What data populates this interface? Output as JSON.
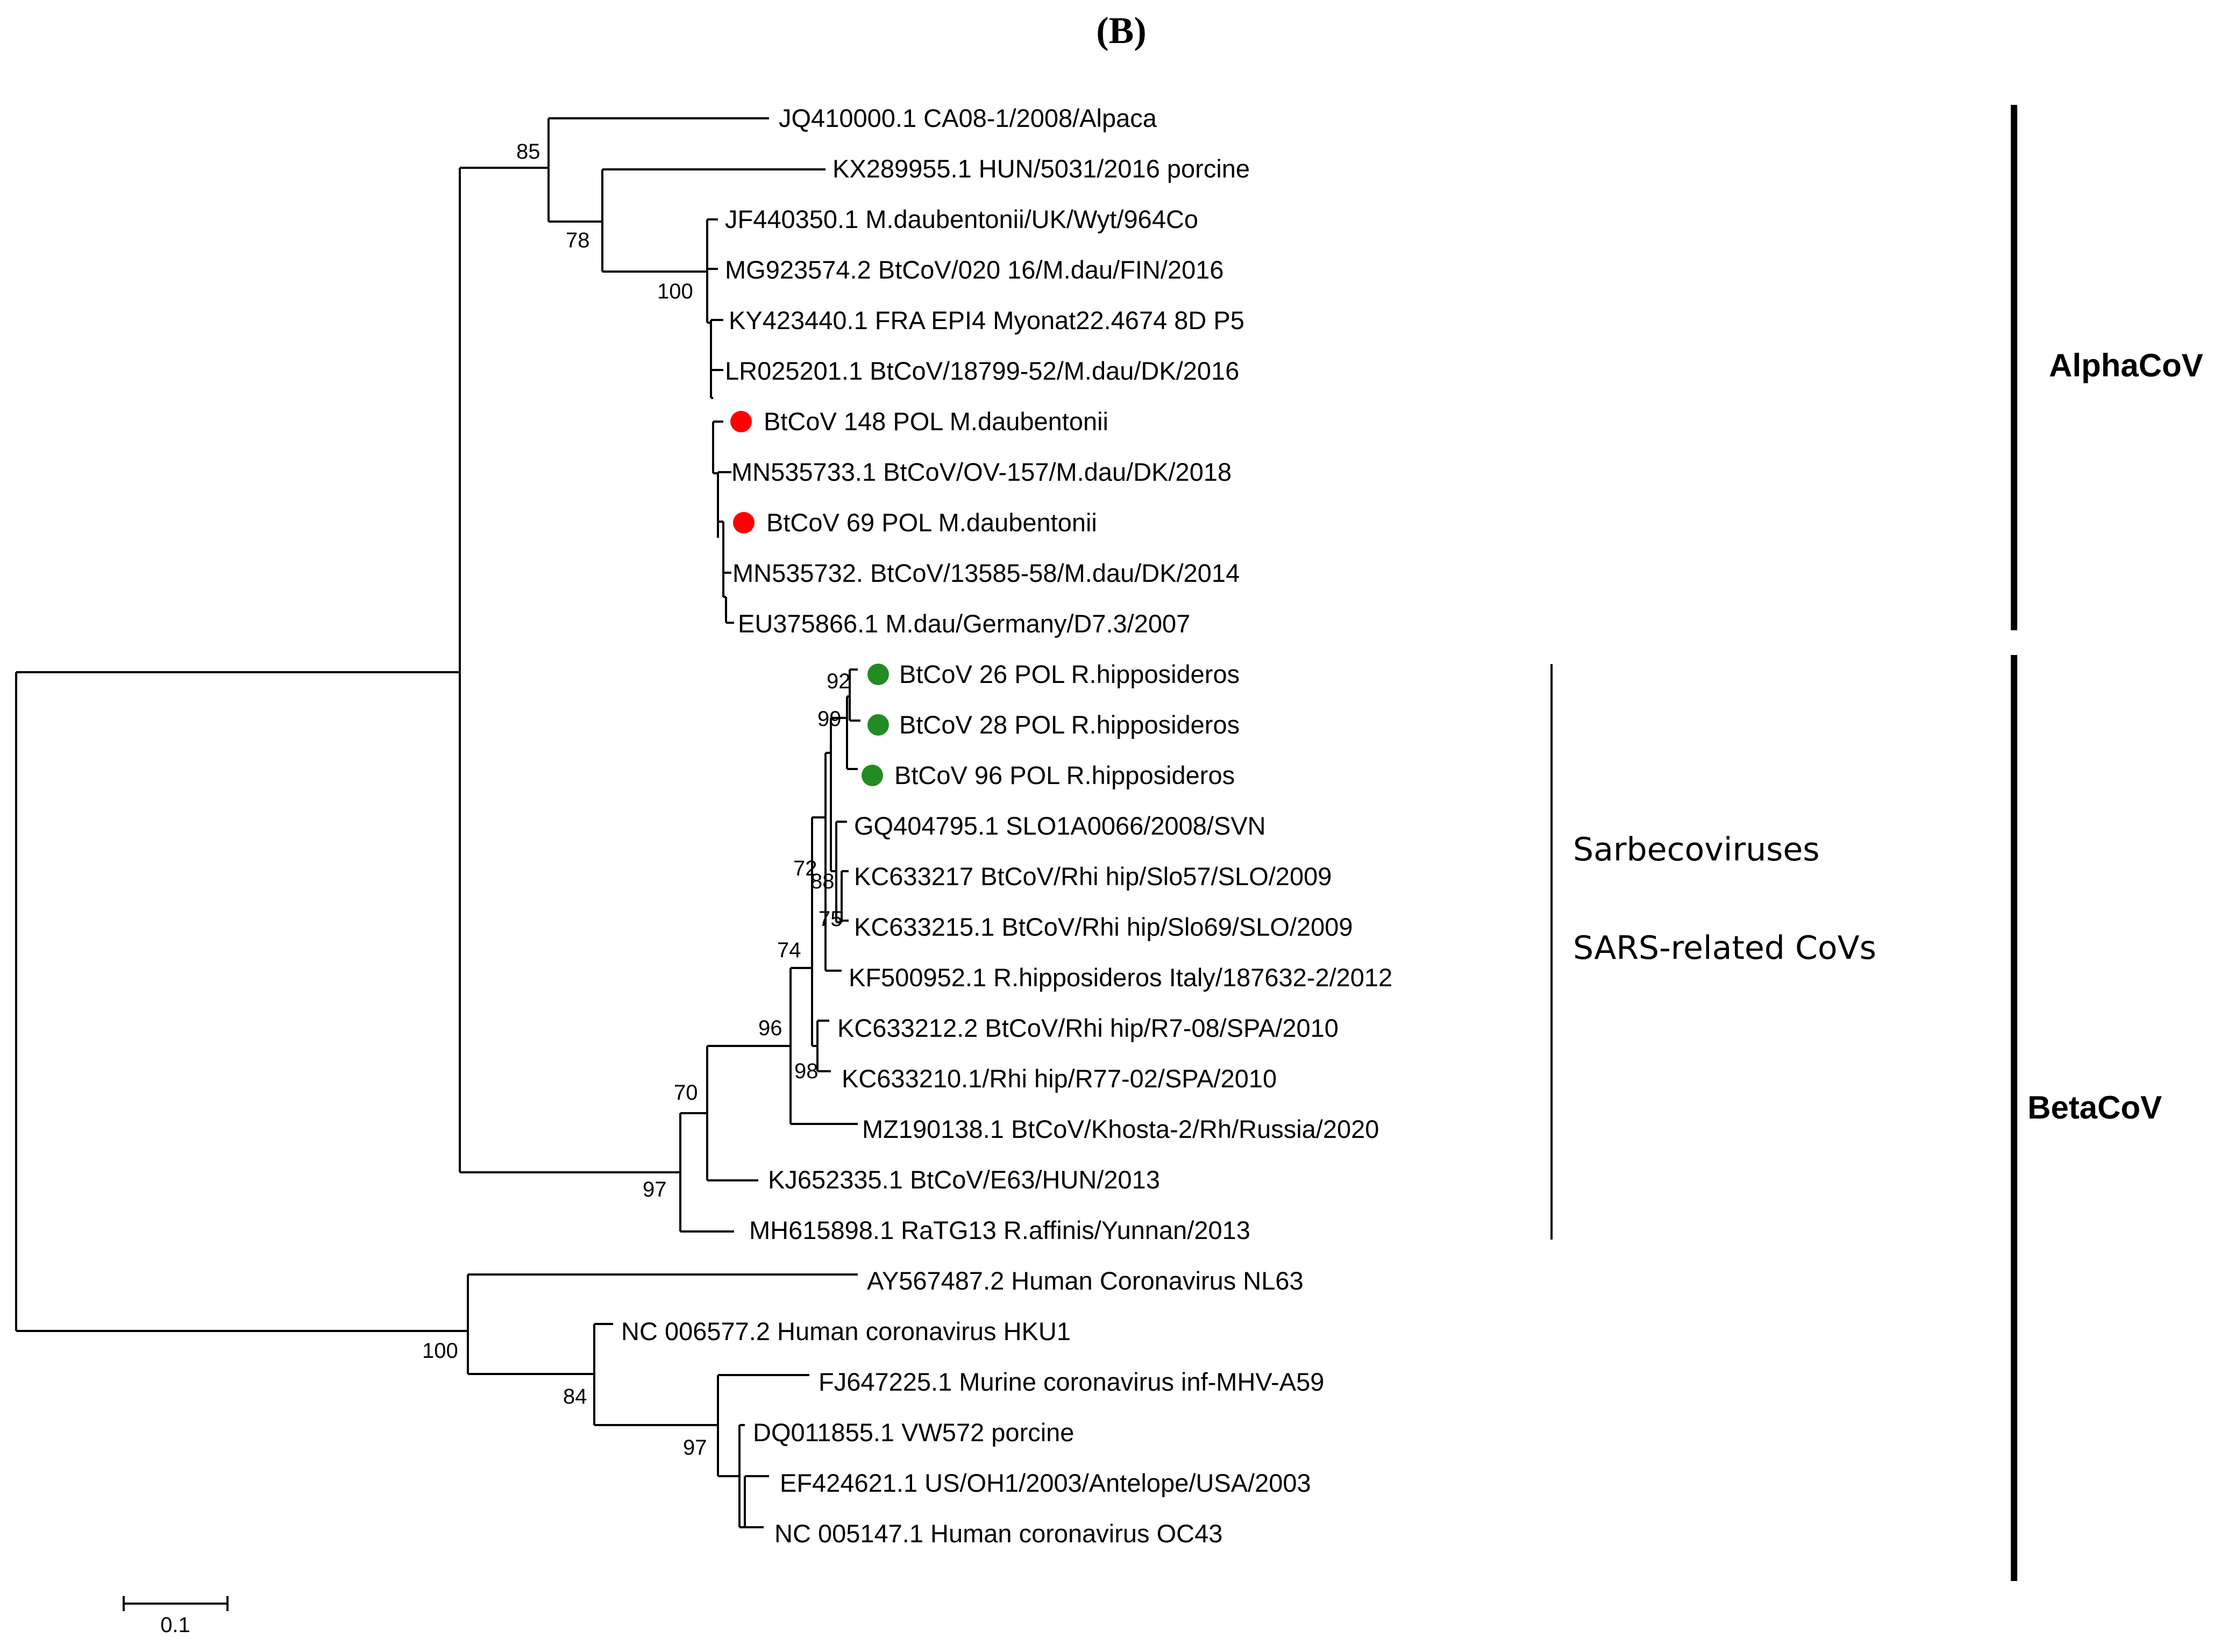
{
  "panel_label": "(B)",
  "taxa": [
    {
      "id": "t1",
      "label": "JQ410000.1 CA08-1/2008/Alpaca"
    },
    {
      "id": "t2",
      "label": "KX289955.1 HUN/5031/2016 porcine"
    },
    {
      "id": "t3",
      "label": "JF440350.1 M.daubentonii/UK/Wyt/964Co"
    },
    {
      "id": "t4",
      "label": "MG923574.2 BtCoV/020 16/M.dau/FIN/2016"
    },
    {
      "id": "t5",
      "label": "KY423440.1 FRA EPI4 Myonat22.4674 8D P5"
    },
    {
      "id": "t6",
      "label": "LR025201.1 BtCoV/18799-52/M.dau/DK/2016"
    },
    {
      "id": "t7",
      "label": "BtCoV 148 POL M.daubentonii",
      "marker": "red"
    },
    {
      "id": "t8",
      "label": "MN535733.1 BtCoV/OV-157/M.dau/DK/2018"
    },
    {
      "id": "t9",
      "label": "BtCoV 69 POL M.daubentonii",
      "marker": "red"
    },
    {
      "id": "t10",
      "label": "MN535732. BtCoV/13585-58/M.dau/DK/2014"
    },
    {
      "id": "t11",
      "label": "EU375866.1 M.dau/Germany/D7.3/2007"
    },
    {
      "id": "t12",
      "label": "BtCoV 26 POL R.hipposideros",
      "marker": "green"
    },
    {
      "id": "t13",
      "label": "BtCoV 28 POL R.hipposideros",
      "marker": "green"
    },
    {
      "id": "t14",
      "label": "BtCoV 96 POL R.hipposideros",
      "marker": "green"
    },
    {
      "id": "t15",
      "label": "GQ404795.1 SLO1A0066/2008/SVN"
    },
    {
      "id": "t16",
      "label": "KC633217 BtCoV/Rhi hip/Slo57/SLO/2009"
    },
    {
      "id": "t17",
      "label": "KC633215.1 BtCoV/Rhi hip/Slo69/SLO/2009"
    },
    {
      "id": "t18",
      "label": "KF500952.1 R.hipposideros Italy/187632-2/2012"
    },
    {
      "id": "t19",
      "label": "KC633212.2 BtCoV/Rhi hip/R7-08/SPA/2010"
    },
    {
      "id": "t20",
      "label": "KC633210.1/Rhi hip/R77-02/SPA/2010"
    },
    {
      "id": "t21",
      "label": "MZ190138.1 BtCoV/Khosta-2/Rh/Russia/2020"
    },
    {
      "id": "t22",
      "label": "KJ652335.1 BtCoV/E63/HUN/2013"
    },
    {
      "id": "t23",
      "label": "MH615898.1 RaTG13 R.affinis/Yunnan/2013"
    },
    {
      "id": "t24",
      "label": "AY567487.2 Human Coronavirus NL63"
    },
    {
      "id": "t25",
      "label": "NC 006577.2 Human coronavirus HKU1"
    },
    {
      "id": "t26",
      "label": "FJ647225.1 Murine coronavirus inf-MHV-A59"
    },
    {
      "id": "t27",
      "label": "DQ011855.1 VW572 porcine"
    },
    {
      "id": "t28",
      "label": "EF424621.1 US/OH1/2003/Antelope/USA/2003"
    },
    {
      "id": "t29",
      "label": "NC 005147.1 Human coronavirus OC43"
    }
  ],
  "bootstrap_values": [
    {
      "id": "b85",
      "value": "85"
    },
    {
      "id": "b78",
      "value": "78"
    },
    {
      "id": "b100a",
      "value": "100"
    },
    {
      "id": "b92",
      "value": "92"
    },
    {
      "id": "b99",
      "value": "99"
    },
    {
      "id": "b72",
      "value": "72"
    },
    {
      "id": "b88",
      "value": "88"
    },
    {
      "id": "b75",
      "value": "75"
    },
    {
      "id": "b74",
      "value": "74"
    },
    {
      "id": "b96",
      "value": "96"
    },
    {
      "id": "b98",
      "value": "98"
    },
    {
      "id": "b70",
      "value": "70"
    },
    {
      "id": "b97a",
      "value": "97"
    },
    {
      "id": "b100b",
      "value": "100"
    },
    {
      "id": "b84",
      "value": "84"
    },
    {
      "id": "b97b",
      "value": "97"
    }
  ],
  "groups": {
    "sarbecoviruses": "Sarbecoviruses",
    "sars_related": "SARS-related CoVs"
  },
  "clades": {
    "alpha": "AlphaCoV",
    "beta": "BetaCoV"
  },
  "scale_bar": {
    "value": 0.1,
    "label": "0.1"
  },
  "marker_colors": {
    "red": "#ff0000",
    "green": "#228b22"
  }
}
